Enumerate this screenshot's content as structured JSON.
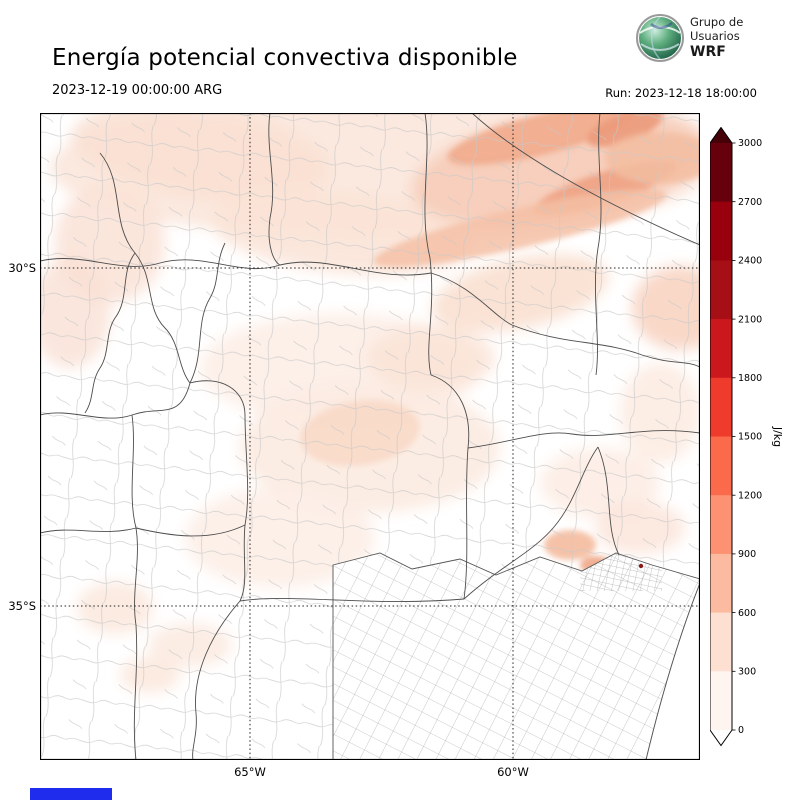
{
  "header": {
    "title": "Energía potencial convectiva disponible",
    "logo": {
      "line1": "Grupo de",
      "line2": "Usuarios",
      "line3": "WRF"
    }
  },
  "subheader": {
    "valid_time": "2023-12-19 00:00:00 ARG",
    "run_time": "Run: 2023-12-18 18:00:00"
  },
  "map": {
    "lat_ticks": [
      "30°S",
      "35°S"
    ],
    "lon_ticks": [
      "65°W",
      "60°W"
    ]
  },
  "colorbar": {
    "unit": "J/kg",
    "tick_labels": [
      "0",
      "300",
      "600",
      "900",
      "1200",
      "1500",
      "1800",
      "2100",
      "2400",
      "2700",
      "3000"
    ],
    "colors": [
      "#fff5f0",
      "#fee0d2",
      "#fcbba1",
      "#fc9272",
      "#fb6a4a",
      "#ef3b2c",
      "#cb181d",
      "#a50f15",
      "#99000d",
      "#67000d"
    ],
    "over_color": "#450008",
    "under_color": "#ffffff"
  },
  "footer": {
    "bar_color": "#1f2cee"
  },
  "chart_data": {
    "type": "heatmap",
    "title": "Energía potencial convectiva disponible",
    "variable": "CAPE (energía potencial convectiva disponible)",
    "unit": "J/kg",
    "levels": [
      0,
      300,
      600,
      900,
      1200,
      1500,
      1800,
      2100,
      2400,
      2700,
      3000
    ],
    "colormap": "Reds",
    "lat_ticks": [
      "30°S",
      "35°S"
    ],
    "lon_ticks": [
      "65°W",
      "60°W"
    ],
    "valid_time": "2023-12-19 00:00:00 ARG",
    "run_time": "2023-12-18 18:00:00",
    "observed_field": "Light shading (roughly 0-900 J/kg) over central and northern Argentina; strongest values in the northeast corner of the domain, scattered light patches over the center, west and south; near-zero over Buenos Aires and the southwest"
  }
}
